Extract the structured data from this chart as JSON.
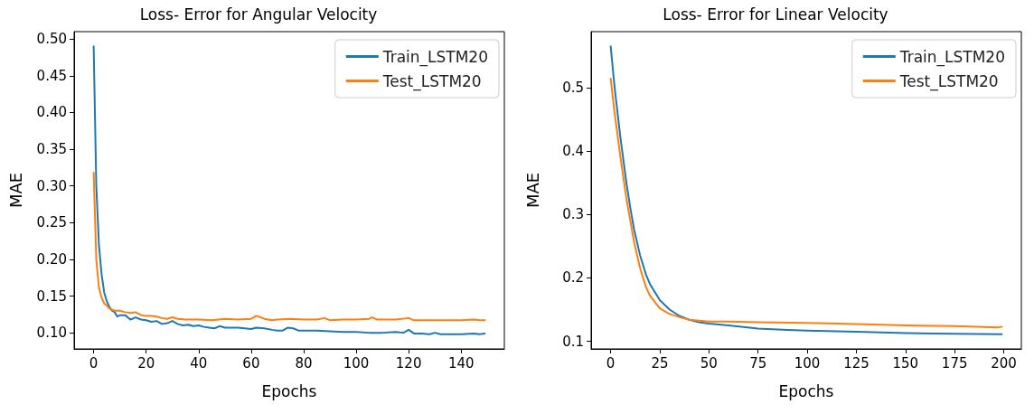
{
  "chart_data": [
    {
      "type": "line",
      "title": "Loss- Error for Angular Velocity",
      "xlabel": "Epochs",
      "ylabel": "MAE",
      "legend": "top right",
      "grid": false,
      "marker": "none",
      "line_style": "solid",
      "xlim": [
        -7.45,
        156.45
      ],
      "xticks": [
        0,
        20,
        40,
        60,
        80,
        100,
        120,
        140
      ],
      "ylim": [
        0.078,
        0.51
      ],
      "yticks": [
        {
          "value": 0.1,
          "label": "0.10"
        },
        {
          "value": 0.15,
          "label": "0.15"
        },
        {
          "value": 0.2,
          "label": "0.20"
        },
        {
          "value": 0.25,
          "label": "0.25"
        },
        {
          "value": 0.3,
          "label": "0.30"
        },
        {
          "value": 0.35,
          "label": "0.35"
        },
        {
          "value": 0.4,
          "label": "0.40"
        },
        {
          "value": 0.45,
          "label": "0.45"
        },
        {
          "value": 0.5,
          "label": "0.50"
        }
      ],
      "series": [
        {
          "name": "Train_LSTM20",
          "color": "#1f77b4",
          "x": [
            0,
            1,
            2,
            3,
            4,
            5,
            6,
            7,
            8,
            9,
            10,
            12,
            14,
            16,
            18,
            20,
            22,
            24,
            26,
            28,
            30,
            32,
            34,
            36,
            38,
            40,
            42,
            44,
            46,
            48,
            50,
            55,
            60,
            62,
            65,
            68,
            70,
            72,
            74,
            76,
            78,
            80,
            85,
            90,
            95,
            100,
            105,
            110,
            115,
            118,
            120,
            122,
            125,
            128,
            130,
            132,
            135,
            140,
            145,
            147,
            149
          ],
          "values": [
            0.49,
            0.3,
            0.22,
            0.18,
            0.155,
            0.143,
            0.135,
            0.13,
            0.128,
            0.122,
            0.124,
            0.124,
            0.118,
            0.121,
            0.118,
            0.117,
            0.115,
            0.116,
            0.112,
            0.113,
            0.116,
            0.112,
            0.11,
            0.111,
            0.109,
            0.11,
            0.108,
            0.107,
            0.106,
            0.109,
            0.107,
            0.107,
            0.105,
            0.107,
            0.106,
            0.104,
            0.103,
            0.103,
            0.107,
            0.106,
            0.103,
            0.103,
            0.103,
            0.102,
            0.101,
            0.101,
            0.1,
            0.1,
            0.101,
            0.1,
            0.104,
            0.099,
            0.099,
            0.098,
            0.1,
            0.098,
            0.098,
            0.098,
            0.099,
            0.098,
            0.099
          ]
        },
        {
          "name": "Test_LSTM20",
          "color": "#ff7f0e",
          "x": [
            0,
            1,
            2,
            3,
            4,
            5,
            6,
            8,
            10,
            12,
            14,
            16,
            18,
            20,
            22,
            24,
            26,
            28,
            30,
            32,
            35,
            40,
            45,
            50,
            55,
            60,
            62,
            65,
            68,
            70,
            75,
            80,
            85,
            88,
            90,
            95,
            100,
            105,
            106,
            108,
            115,
            120,
            122,
            130,
            140,
            145,
            147,
            149
          ],
          "values": [
            0.318,
            0.2,
            0.162,
            0.148,
            0.14,
            0.137,
            0.133,
            0.13,
            0.13,
            0.128,
            0.127,
            0.128,
            0.124,
            0.123,
            0.123,
            0.122,
            0.12,
            0.119,
            0.121,
            0.119,
            0.118,
            0.118,
            0.117,
            0.119,
            0.118,
            0.119,
            0.123,
            0.119,
            0.117,
            0.118,
            0.119,
            0.118,
            0.118,
            0.12,
            0.117,
            0.118,
            0.118,
            0.119,
            0.121,
            0.118,
            0.118,
            0.12,
            0.117,
            0.117,
            0.117,
            0.118,
            0.117,
            0.117
          ]
        }
      ]
    },
    {
      "type": "line",
      "title": "Loss- Error for Linear Velocity",
      "xlabel": "Epochs",
      "ylabel": "MAE",
      "legend": "top right",
      "grid": false,
      "marker": "none",
      "line_style": "solid",
      "xlim": [
        -9.95,
        208.95
      ],
      "xticks": [
        0,
        25,
        50,
        75,
        100,
        125,
        150,
        175,
        200
      ],
      "ylim": [
        0.088,
        0.588
      ],
      "yticks": [
        0.1,
        0.2,
        0.3,
        0.4,
        0.5
      ],
      "series": [
        {
          "name": "Train_LSTM20",
          "color": "#1f77b4",
          "x": [
            0,
            2,
            5,
            8,
            10,
            12,
            15,
            18,
            20,
            25,
            30,
            35,
            40,
            45,
            50,
            60,
            75,
            90,
            100,
            125,
            150,
            175,
            199
          ],
          "values": [
            0.565,
            0.5,
            0.42,
            0.35,
            0.31,
            0.275,
            0.235,
            0.205,
            0.19,
            0.165,
            0.15,
            0.14,
            0.134,
            0.13,
            0.128,
            0.125,
            0.12,
            0.118,
            0.117,
            0.115,
            0.113,
            0.112,
            0.111
          ]
        },
        {
          "name": "Test_LSTM20",
          "color": "#ff7f0e",
          "x": [
            0,
            2,
            5,
            8,
            10,
            12,
            15,
            18,
            20,
            25,
            30,
            35,
            40,
            50,
            60,
            75,
            100,
            125,
            150,
            175,
            197,
            199
          ],
          "values": [
            0.514,
            0.46,
            0.39,
            0.325,
            0.29,
            0.255,
            0.215,
            0.185,
            0.172,
            0.152,
            0.143,
            0.138,
            0.134,
            0.131,
            0.131,
            0.13,
            0.129,
            0.127,
            0.125,
            0.124,
            0.122,
            0.123
          ]
        }
      ]
    }
  ]
}
